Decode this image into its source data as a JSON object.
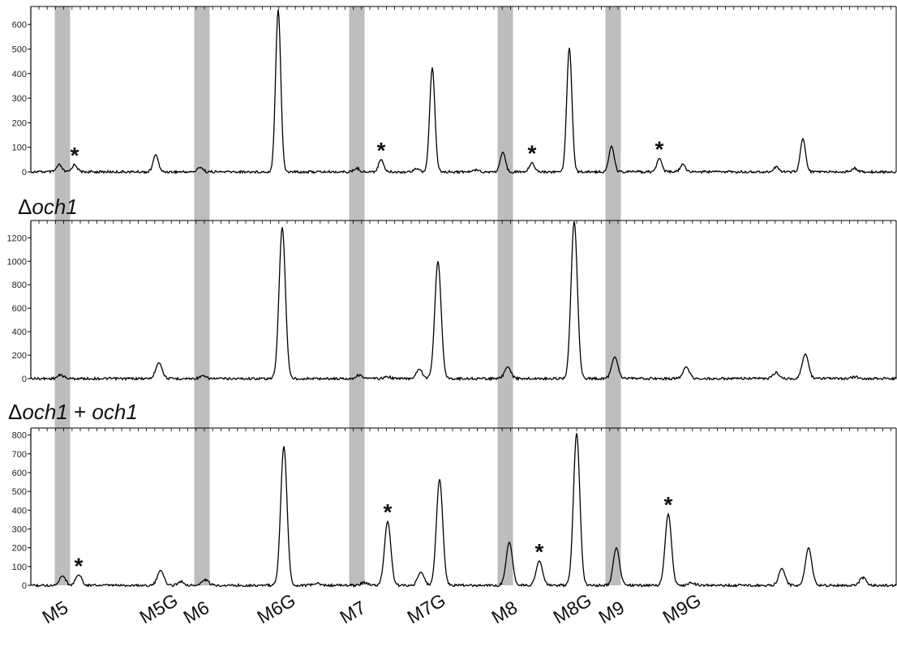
{
  "chart_data": [
    {
      "type": "line",
      "panel_label": "",
      "ylim": [
        0,
        660
      ],
      "yticks": [
        0,
        100,
        200,
        300,
        400,
        500,
        600
      ],
      "grid": false,
      "peaks": [
        {
          "x": 73,
          "y": 28
        },
        {
          "x": 92,
          "y": 30
        },
        {
          "x": 192,
          "y": 70
        },
        {
          "x": 247,
          "y": 20
        },
        {
          "x": 343,
          "y": 660
        },
        {
          "x": 440,
          "y": 15
        },
        {
          "x": 470,
          "y": 50
        },
        {
          "x": 513,
          "y": 15
        },
        {
          "x": 533,
          "y": 425
        },
        {
          "x": 588,
          "y": 10
        },
        {
          "x": 620,
          "y": 80
        },
        {
          "x": 656,
          "y": 38
        },
        {
          "x": 702,
          "y": 505
        },
        {
          "x": 754,
          "y": 105
        },
        {
          "x": 813,
          "y": 55
        },
        {
          "x": 842,
          "y": 30
        },
        {
          "x": 957,
          "y": 20
        },
        {
          "x": 990,
          "y": 135
        },
        {
          "x": 1054,
          "y": 15
        }
      ],
      "asterisks": [
        {
          "label": "*",
          "x": 92,
          "y": 30
        },
        {
          "label": "*",
          "x": 470,
          "y": 50
        },
        {
          "label": "*",
          "x": 656,
          "y": 38
        },
        {
          "label": "*",
          "x": 813,
          "y": 55
        }
      ]
    },
    {
      "type": "line",
      "panel_label": "Δoch1",
      "ylim": [
        0,
        1320
      ],
      "yticks": [
        0,
        200,
        400,
        600,
        800,
        1000,
        1200
      ],
      "grid": false,
      "peaks": [
        {
          "x": 75,
          "y": 30
        },
        {
          "x": 196,
          "y": 135
        },
        {
          "x": 250,
          "y": 20
        },
        {
          "x": 348,
          "y": 1290
        },
        {
          "x": 443,
          "y": 30
        },
        {
          "x": 478,
          "y": 15
        },
        {
          "x": 517,
          "y": 80
        },
        {
          "x": 540,
          "y": 1000
        },
        {
          "x": 626,
          "y": 100
        },
        {
          "x": 708,
          "y": 1340
        },
        {
          "x": 758,
          "y": 185
        },
        {
          "x": 846,
          "y": 100
        },
        {
          "x": 957,
          "y": 50
        },
        {
          "x": 993,
          "y": 210
        },
        {
          "x": 1054,
          "y": 15
        }
      ],
      "asterisks": []
    },
    {
      "type": "line",
      "panel_label": "Δoch1 + och1",
      "ylim": [
        0,
        820
      ],
      "yticks": [
        0,
        100,
        200,
        300,
        400,
        500,
        600,
        700,
        800
      ],
      "grid": false,
      "peaks": [
        {
          "x": 77,
          "y": 50
        },
        {
          "x": 97,
          "y": 55
        },
        {
          "x": 198,
          "y": 80
        },
        {
          "x": 223,
          "y": 20
        },
        {
          "x": 253,
          "y": 30
        },
        {
          "x": 350,
          "y": 740
        },
        {
          "x": 390,
          "y": 10
        },
        {
          "x": 449,
          "y": 15
        },
        {
          "x": 478,
          "y": 340
        },
        {
          "x": 519,
          "y": 70
        },
        {
          "x": 542,
          "y": 565
        },
        {
          "x": 628,
          "y": 230
        },
        {
          "x": 665,
          "y": 130
        },
        {
          "x": 711,
          "y": 810
        },
        {
          "x": 760,
          "y": 200
        },
        {
          "x": 824,
          "y": 380
        },
        {
          "x": 853,
          "y": 15
        },
        {
          "x": 964,
          "y": 90
        },
        {
          "x": 997,
          "y": 200
        },
        {
          "x": 1064,
          "y": 40
        }
      ],
      "asterisks": [
        {
          "label": "*",
          "x": 97,
          "y": 55
        },
        {
          "label": "*",
          "x": 478,
          "y": 340
        },
        {
          "label": "*",
          "x": 665,
          "y": 130
        },
        {
          "label": "*",
          "x": 824,
          "y": 380
        }
      ]
    }
  ],
  "peak_labels": [
    "M5",
    "M5G",
    "M6",
    "M6G",
    "M7",
    "M7G",
    "M8",
    "M8G",
    "M9",
    "M9G"
  ],
  "shaded_markers": [
    "M5",
    "M6",
    "M7",
    "M8",
    "M9"
  ],
  "colors": {
    "trace": "#000000",
    "band": "#bdbdbd",
    "axis": "#000000"
  }
}
